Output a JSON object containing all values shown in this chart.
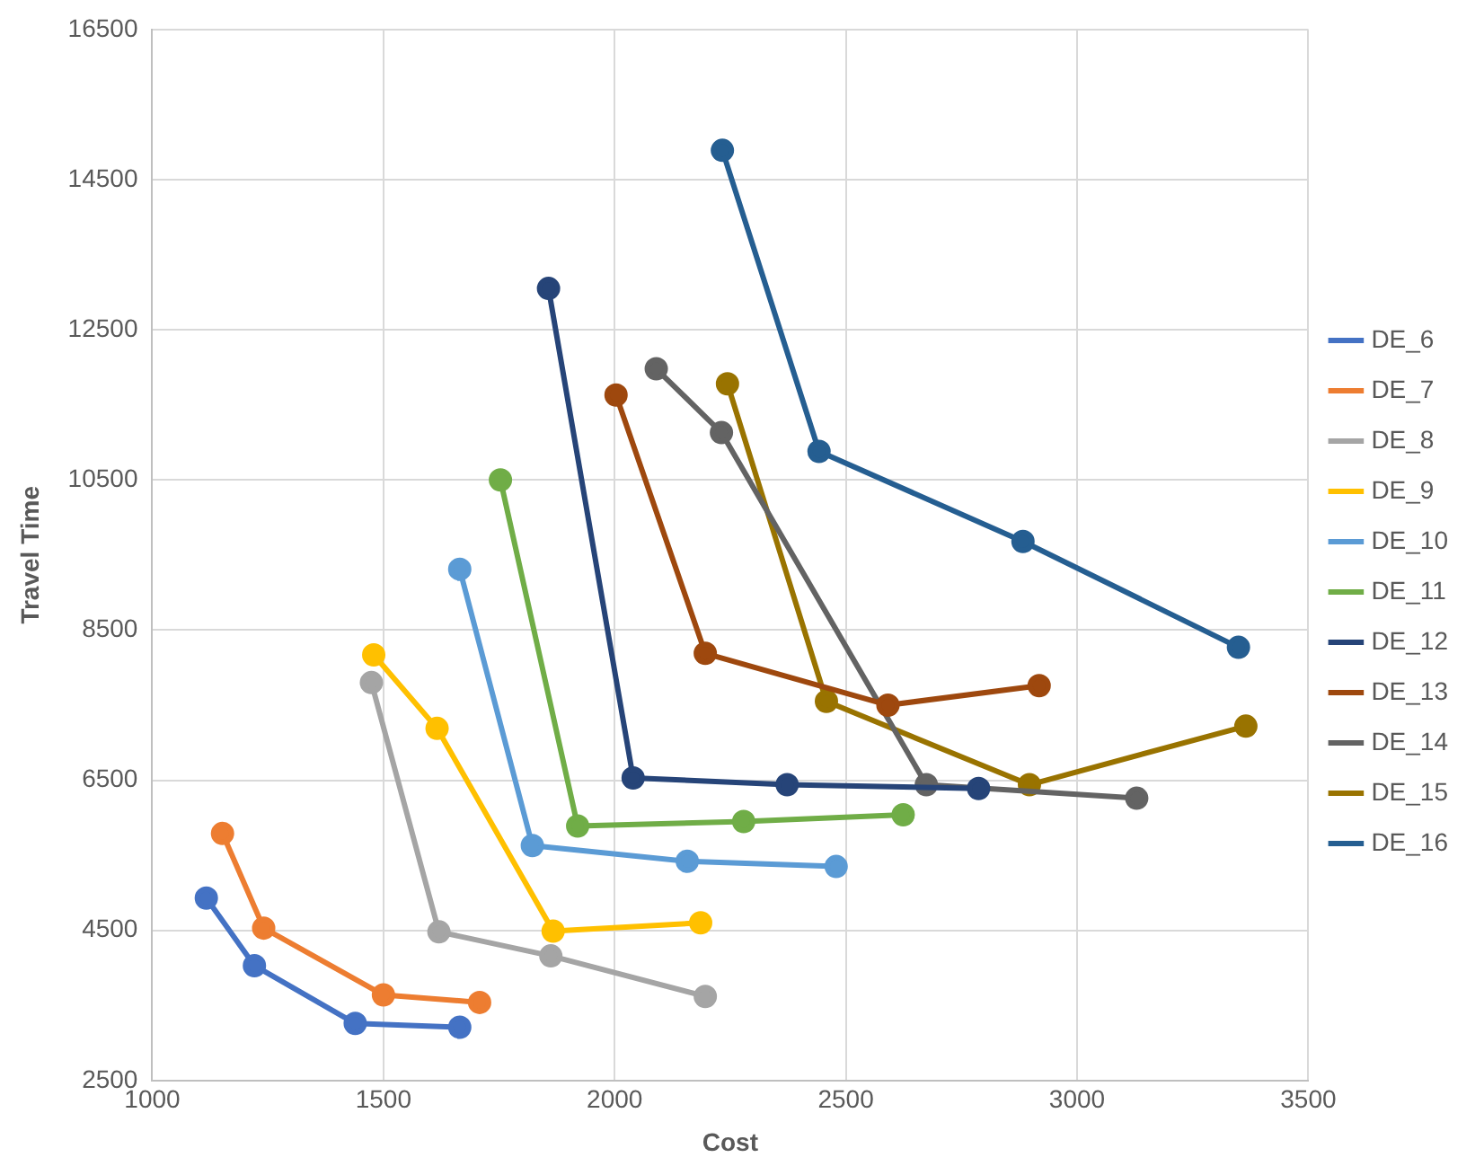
{
  "chart_data": {
    "type": "line",
    "xlabel": "Cost",
    "ylabel": "Travel Time",
    "xlim": [
      1000,
      3500
    ],
    "xticks": [
      1000,
      1500,
      2000,
      2500,
      3000,
      3500
    ],
    "ylim": [
      2500,
      16500
    ],
    "yticks": [
      2500,
      4500,
      6500,
      8500,
      10500,
      12500,
      14500,
      16500
    ],
    "grid": true,
    "legend": "right",
    "marker": "circle",
    "line_style": "solid",
    "series": [
      {
        "name": "DE_6",
        "color": "#4472c4",
        "x": [
          1117,
          1221,
          1439,
          1665
        ],
        "values": [
          4930,
          4030,
          3260,
          3210
        ]
      },
      {
        "name": "DE_7",
        "color": "#ed7d31",
        "x": [
          1152,
          1241,
          1500,
          1708
        ],
        "values": [
          5790,
          4530,
          3640,
          3540
        ]
      },
      {
        "name": "DE_8",
        "color": "#a5a5a5",
        "x": [
          1474,
          1620,
          1862,
          2196
        ],
        "values": [
          7800,
          4480,
          4160,
          3620
        ]
      },
      {
        "name": "DE_9",
        "color": "#ffc000",
        "x": [
          1479,
          1616,
          1867,
          2186
        ],
        "values": [
          8170,
          7190,
          4490,
          4600
        ]
      },
      {
        "name": "DE_10",
        "color": "#5b9bd5",
        "x": [
          1665,
          1822,
          2157,
          2479
        ],
        "values": [
          9310,
          5630,
          5420,
          5350
        ]
      },
      {
        "name": "DE_11",
        "color": "#70ad47",
        "x": [
          1753,
          1920,
          2279,
          2624
        ],
        "values": [
          10500,
          5890,
          5950,
          6040
        ]
      },
      {
        "name": "DE_12",
        "color": "#264478",
        "x": [
          1857,
          2040,
          2373,
          2787
        ],
        "values": [
          13050,
          6530,
          6440,
          6390
        ]
      },
      {
        "name": "DE_13",
        "color": "#9e480e",
        "x": [
          2003,
          2196,
          2591,
          2918
        ],
        "values": [
          11630,
          8190,
          7500,
          7760
        ]
      },
      {
        "name": "DE_14",
        "color": "#636363",
        "x": [
          2090,
          2231,
          2674,
          3129
        ],
        "values": [
          11980,
          11130,
          6440,
          6260
        ]
      },
      {
        "name": "DE_15",
        "color": "#997300",
        "x": [
          2244,
          2458,
          2897,
          3365
        ],
        "values": [
          11780,
          7550,
          6440,
          7220
        ]
      },
      {
        "name": "DE_16",
        "color": "#255e91",
        "x": [
          2233,
          2442,
          2883,
          3349
        ],
        "values": [
          14890,
          10880,
          9680,
          8270
        ]
      }
    ]
  }
}
